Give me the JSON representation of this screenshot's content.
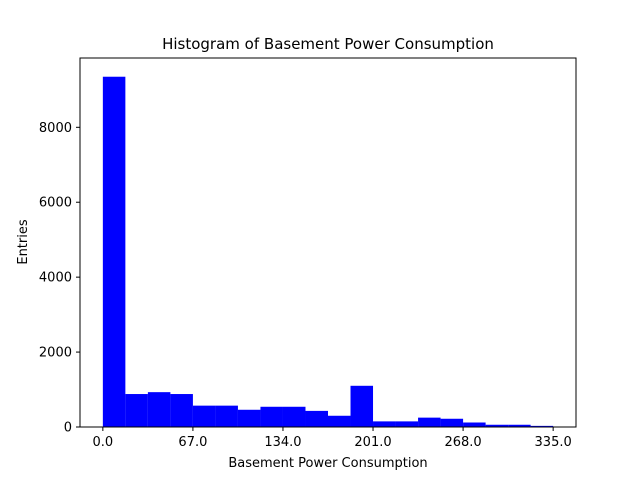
{
  "chart_data": {
    "type": "bar",
    "title": "Histogram of Basement Power Consumption",
    "xlabel": "Basement Power Consumption",
    "ylabel": "Entries",
    "bin_start": 0.0,
    "bin_end": 335.0,
    "bins": [
      {
        "start": 0.0,
        "end": 16.75,
        "count": 9350
      },
      {
        "start": 16.75,
        "end": 33.5,
        "count": 880
      },
      {
        "start": 33.5,
        "end": 50.25,
        "count": 930
      },
      {
        "start": 50.25,
        "end": 67.0,
        "count": 880
      },
      {
        "start": 67.0,
        "end": 83.75,
        "count": 570
      },
      {
        "start": 83.75,
        "end": 100.5,
        "count": 570
      },
      {
        "start": 100.5,
        "end": 117.25,
        "count": 460
      },
      {
        "start": 117.25,
        "end": 134.0,
        "count": 540
      },
      {
        "start": 134.0,
        "end": 150.75,
        "count": 540
      },
      {
        "start": 150.75,
        "end": 167.5,
        "count": 430
      },
      {
        "start": 167.5,
        "end": 184.25,
        "count": 300
      },
      {
        "start": 184.25,
        "end": 201.0,
        "count": 1100
      },
      {
        "start": 201.0,
        "end": 217.75,
        "count": 150
      },
      {
        "start": 217.75,
        "end": 234.5,
        "count": 150
      },
      {
        "start": 234.5,
        "end": 251.25,
        "count": 250
      },
      {
        "start": 251.25,
        "end": 268.0,
        "count": 220
      },
      {
        "start": 268.0,
        "end": 284.75,
        "count": 120
      },
      {
        "start": 284.75,
        "end": 301.5,
        "count": 60
      },
      {
        "start": 301.5,
        "end": 318.25,
        "count": 60
      },
      {
        "start": 318.25,
        "end": 335.0,
        "count": 30
      }
    ],
    "xticks": [
      0.0,
      67.0,
      134.0,
      201.0,
      268.0,
      335.0
    ],
    "xtick_labels": [
      "0.0",
      "67.0",
      "134.0",
      "201.0",
      "268.0",
      "335.0"
    ],
    "yticks": [
      0,
      2000,
      4000,
      6000,
      8000
    ],
    "ytick_labels": [
      "0",
      "2000",
      "4000",
      "6000",
      "8000"
    ],
    "xlim": [
      -17,
      352
    ],
    "ylim": [
      0,
      9850
    ],
    "bar_color": "#0000ff",
    "grid": false,
    "legend": false
  }
}
